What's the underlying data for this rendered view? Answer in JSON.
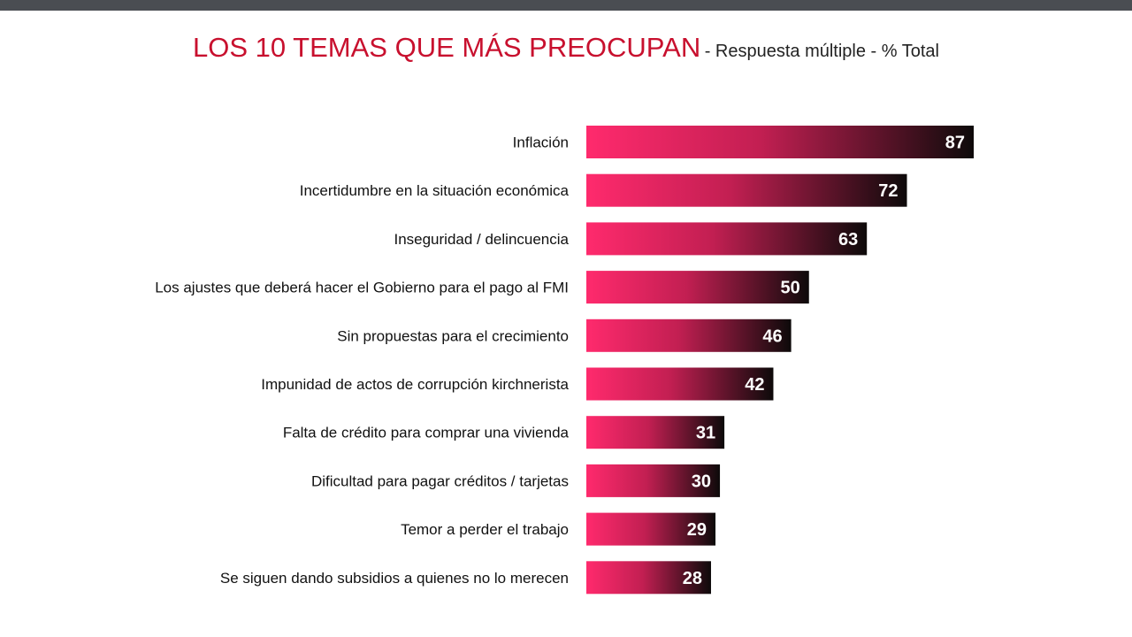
{
  "chart_data": {
    "type": "bar",
    "orientation": "horizontal",
    "title": "LOS 10 TEMAS QUE MÁS PREOCUPAN",
    "subtitle": "- Respuesta múltiple - % Total",
    "categories": [
      "Inflación",
      "Incertidumbre en la situación económica",
      "Inseguridad / delincuencia",
      "Los ajustes que deberá hacer el Gobierno para el pago al FMI",
      "Sin propuestas para el crecimiento",
      "Impunidad de actos de corrupción kirchnerista",
      "Falta de crédito para comprar una vivienda",
      "Dificultad para pagar créditos / tarjetas",
      "Temor a perder el trabajo",
      "Se siguen dando subsidios a quienes no lo merecen"
    ],
    "values": [
      87,
      72,
      63,
      50,
      46,
      42,
      31,
      30,
      29,
      28
    ],
    "data_labels": [
      "87",
      "72",
      "63",
      "50",
      "46",
      "42",
      "31",
      "30",
      "29",
      "28"
    ],
    "xlim": [
      0,
      100
    ],
    "grid": false,
    "legend": "none",
    "colors": {
      "gradient_start": "#ff2a6d",
      "gradient_end": "#0d0a0a",
      "title": "#c8102e"
    }
  }
}
